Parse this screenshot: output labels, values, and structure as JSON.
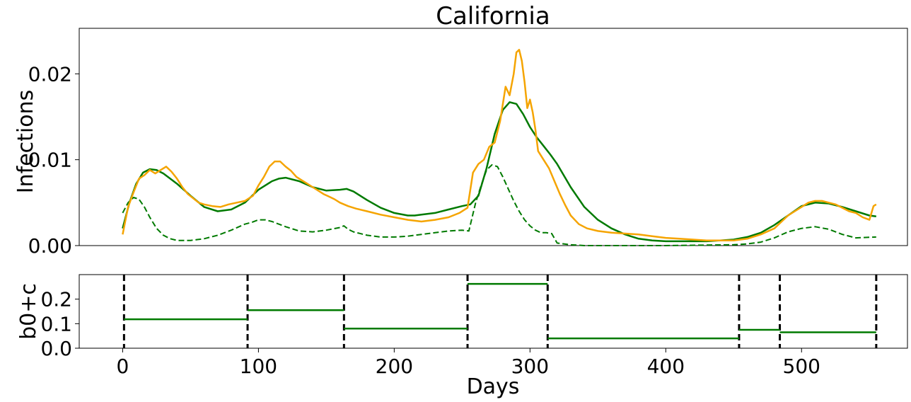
{
  "chart_data": [
    {
      "type": "line",
      "title": "California",
      "xlabel": "",
      "ylabel": "Infections",
      "xlim": [
        -32,
        578
      ],
      "ylim": [
        0,
        0.0253
      ],
      "yticks": [
        0.0,
        0.01,
        0.02
      ],
      "ytick_labels": [
        "0.00",
        "0.01",
        "0.02"
      ],
      "grid": false,
      "colors": {
        "observed": "#f5a400",
        "fit": "#007a00",
        "component": "#007a00"
      },
      "series": [
        {
          "style": "solid",
          "color": "#f5a400",
          "x": [
            0,
            4,
            8,
            12,
            16,
            20,
            24,
            28,
            32,
            36,
            40,
            44,
            48,
            52,
            56,
            60,
            66,
            72,
            78,
            84,
            90,
            96,
            100,
            104,
            108,
            112,
            116,
            120,
            124,
            128,
            132,
            136,
            140,
            144,
            148,
            152,
            156,
            160,
            166,
            172,
            180,
            190,
            200,
            210,
            220,
            230,
            240,
            248,
            254,
            258,
            262,
            266,
            270,
            274,
            278,
            282,
            285,
            288,
            290,
            292,
            294,
            296,
            298,
            300,
            302,
            304,
            306,
            310,
            314,
            318,
            322,
            326,
            330,
            336,
            342,
            350,
            360,
            370,
            380,
            390,
            400,
            410,
            420,
            430,
            440,
            450,
            460,
            470,
            480,
            490,
            500,
            505,
            510,
            515,
            520,
            525,
            530,
            535,
            540,
            545,
            550,
            553,
            555
          ],
          "y": [
            0.0013,
            0.0045,
            0.0062,
            0.0078,
            0.0082,
            0.0088,
            0.0084,
            0.0088,
            0.0092,
            0.0086,
            0.0078,
            0.0068,
            0.006,
            0.0055,
            0.005,
            0.0048,
            0.0046,
            0.0045,
            0.0048,
            0.005,
            0.0052,
            0.0058,
            0.007,
            0.008,
            0.0092,
            0.0098,
            0.0098,
            0.0092,
            0.0087,
            0.008,
            0.0076,
            0.0072,
            0.0068,
            0.0064,
            0.006,
            0.0057,
            0.0054,
            0.005,
            0.0046,
            0.0043,
            0.004,
            0.0036,
            0.0033,
            0.003,
            0.0028,
            0.003,
            0.0033,
            0.0038,
            0.0044,
            0.0085,
            0.0095,
            0.01,
            0.0115,
            0.012,
            0.0145,
            0.0185,
            0.0175,
            0.02,
            0.0225,
            0.0228,
            0.0215,
            0.019,
            0.016,
            0.017,
            0.0155,
            0.0135,
            0.011,
            0.01,
            0.009,
            0.0075,
            0.006,
            0.0047,
            0.0035,
            0.0025,
            0.002,
            0.0017,
            0.0015,
            0.0014,
            0.0013,
            0.0011,
            0.0009,
            0.0008,
            0.0007,
            0.0006,
            0.0006,
            0.0006,
            0.0008,
            0.0013,
            0.002,
            0.0035,
            0.0045,
            0.005,
            0.0052,
            0.0052,
            0.005,
            0.0048,
            0.0044,
            0.004,
            0.0038,
            0.0033,
            0.003,
            0.0046,
            0.0048
          ]
        },
        {
          "style": "solid",
          "color": "#007a00",
          "x": [
            0,
            5,
            10,
            15,
            20,
            25,
            30,
            40,
            50,
            60,
            70,
            80,
            90,
            100,
            110,
            115,
            120,
            130,
            140,
            150,
            160,
            165,
            170,
            180,
            190,
            200,
            210,
            215,
            220,
            230,
            240,
            250,
            256,
            262,
            268,
            274,
            280,
            285,
            290,
            295,
            300,
            305,
            310,
            315,
            320,
            330,
            340,
            350,
            360,
            370,
            380,
            390,
            400,
            410,
            420,
            430,
            440,
            450,
            460,
            470,
            480,
            490,
            500,
            510,
            520,
            530,
            540,
            550,
            555
          ],
          "y": [
            0.002,
            0.005,
            0.0072,
            0.0085,
            0.0089,
            0.0088,
            0.0084,
            0.0072,
            0.0058,
            0.0045,
            0.004,
            0.0042,
            0.005,
            0.0065,
            0.0075,
            0.0078,
            0.0079,
            0.0075,
            0.0068,
            0.0064,
            0.0065,
            0.0066,
            0.0063,
            0.0053,
            0.0044,
            0.0038,
            0.0035,
            0.0035,
            0.0036,
            0.0038,
            0.0042,
            0.0046,
            0.0048,
            0.0058,
            0.009,
            0.013,
            0.0158,
            0.0167,
            0.0165,
            0.0153,
            0.0138,
            0.0126,
            0.0116,
            0.0106,
            0.0095,
            0.0068,
            0.0045,
            0.003,
            0.002,
            0.0013,
            0.0008,
            0.0006,
            0.0005,
            0.0005,
            0.0005,
            0.0005,
            0.0006,
            0.0007,
            0.001,
            0.0015,
            0.0024,
            0.0035,
            0.0046,
            0.005,
            0.0049,
            0.0045,
            0.004,
            0.0035,
            0.0034
          ]
        },
        {
          "style": "dashed",
          "color": "#007a00",
          "x": [
            0,
            4,
            8,
            12,
            16,
            20,
            25,
            30,
            35,
            40,
            45,
            50,
            55,
            60,
            70,
            80,
            90,
            95,
            100,
            105,
            110,
            120,
            130,
            140,
            150,
            160,
            163,
            166,
            170,
            180,
            190,
            200,
            210,
            220,
            230,
            240,
            250,
            255,
            260,
            264,
            268,
            272,
            276,
            280,
            284,
            288,
            292,
            296,
            300,
            304,
            308,
            312,
            316,
            320,
            330,
            340,
            350,
            400,
            450,
            460,
            470,
            480,
            490,
            500,
            510,
            520,
            530,
            540,
            555
          ],
          "y": [
            0.0038,
            0.005,
            0.0056,
            0.0054,
            0.0045,
            0.0033,
            0.002,
            0.0012,
            0.0008,
            0.0006,
            0.0006,
            0.0006,
            0.0007,
            0.0008,
            0.0012,
            0.0018,
            0.0025,
            0.0027,
            0.003,
            0.003,
            0.0028,
            0.0022,
            0.0017,
            0.0016,
            0.0018,
            0.0021,
            0.0023,
            0.0019,
            0.0016,
            0.0012,
            0.001,
            0.001,
            0.0011,
            0.0013,
            0.0015,
            0.0017,
            0.0018,
            0.0017,
            0.005,
            0.007,
            0.0088,
            0.0094,
            0.0092,
            0.008,
            0.0066,
            0.0052,
            0.004,
            0.003,
            0.0023,
            0.0018,
            0.0015,
            0.0015,
            0.0014,
            0.0003,
            0.0001,
            0.0,
            0.0,
            0.0,
            0.0001,
            0.0002,
            0.0004,
            0.0009,
            0.0016,
            0.002,
            0.0022,
            0.0019,
            0.0013,
            0.0009,
            0.001
          ]
        }
      ]
    },
    {
      "type": "line",
      "title": "",
      "xlabel": "Days",
      "ylabel": "b0+c",
      "xlim": [
        -32,
        578
      ],
      "ylim": [
        0,
        0.3
      ],
      "xticks": [
        0,
        100,
        200,
        300,
        400,
        500
      ],
      "yticks": [
        0.0,
        0.1,
        0.2
      ],
      "ytick_labels": [
        "0.0",
        "0.1",
        "0.2"
      ],
      "grid": false,
      "breakpoints": [
        1,
        92,
        163,
        254,
        313,
        454,
        484,
        555
      ],
      "series": [
        {
          "style": "step",
          "color": "#007a00",
          "segments": [
            {
              "x0": 1,
              "x1": 92,
              "y": 0.118
            },
            {
              "x0": 92,
              "x1": 163,
              "y": 0.155
            },
            {
              "x0": 163,
              "x1": 254,
              "y": 0.08
            },
            {
              "x0": 254,
              "x1": 313,
              "y": 0.262
            },
            {
              "x0": 313,
              "x1": 454,
              "y": 0.04
            },
            {
              "x0": 454,
              "x1": 484,
              "y": 0.075
            },
            {
              "x0": 484,
              "x1": 555,
              "y": 0.065
            }
          ]
        }
      ]
    }
  ]
}
